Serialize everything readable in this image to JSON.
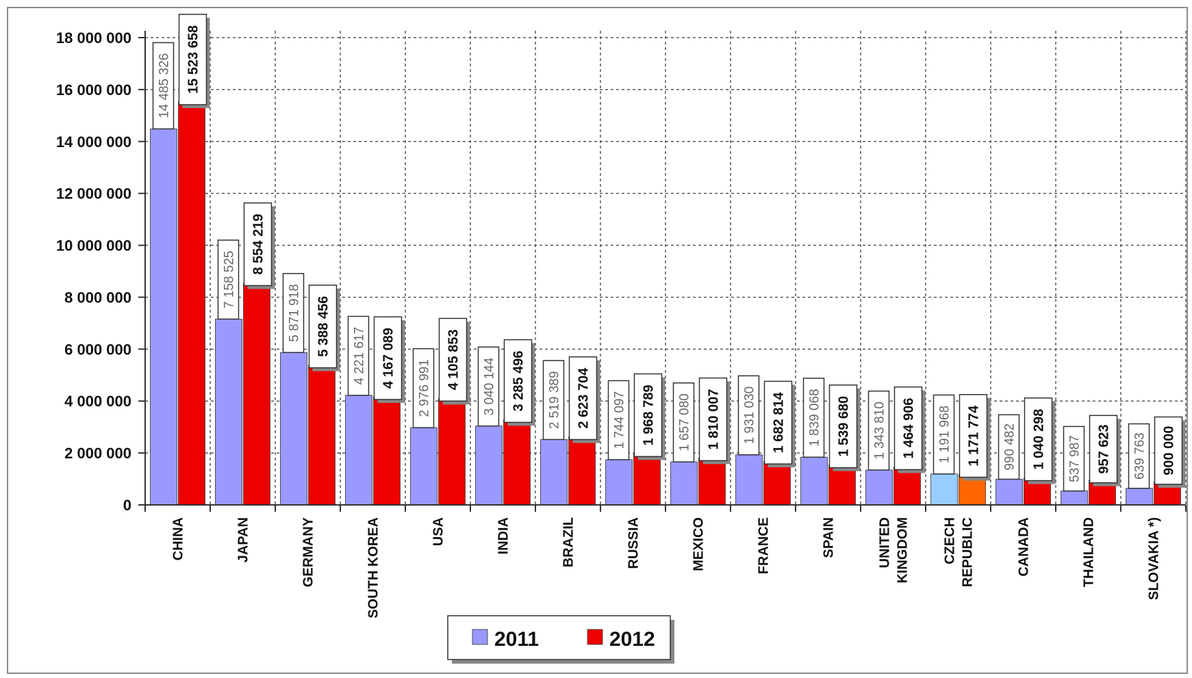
{
  "chart_data": {
    "type": "bar",
    "title": "",
    "xlabel": "",
    "ylabel": "",
    "ylim": [
      0,
      18000000
    ],
    "y_ticks": [
      "0",
      "2 000 000",
      "4 000 000",
      "6 000 000",
      "8 000 000",
      "10 000 000",
      "12 000 000",
      "14 000 000",
      "16 000 000",
      "18 000 000"
    ],
    "y_tick_values": [
      0,
      2000000,
      4000000,
      6000000,
      8000000,
      10000000,
      12000000,
      14000000,
      16000000,
      18000000
    ],
    "grid": true,
    "legend_position": "bottom-center",
    "categories": [
      [
        "CHINA"
      ],
      [
        "JAPAN"
      ],
      [
        "GERMANY"
      ],
      [
        "SOUTH KOREA"
      ],
      [
        "USA"
      ],
      [
        "INDIA"
      ],
      [
        "BRAZIL"
      ],
      [
        "RUSSIA"
      ],
      [
        "MEXICO"
      ],
      [
        "FRANCE"
      ],
      [
        "SPAIN"
      ],
      [
        "UNITED",
        "KINGDOM"
      ],
      [
        "CZECH",
        "REPUBLIC"
      ],
      [
        "CANADA"
      ],
      [
        "THAILAND"
      ],
      [
        "SLOVAKIA *)"
      ]
    ],
    "series": [
      {
        "name": "2011",
        "color": "#9999ff",
        "values": [
          14485326,
          7158525,
          5871918,
          4221617,
          2976991,
          3040144,
          2519389,
          1744097,
          1657080,
          1931030,
          1839068,
          1343810,
          1191968,
          990482,
          537987,
          639763
        ],
        "labels": [
          "14 485 326",
          "7 158 525",
          "5 871 918",
          "4 221 617",
          "2 976 991",
          "3 040 144",
          "2 519 389",
          "1 744 097",
          "1 657 080",
          "1 931 030",
          "1 839 068",
          "1 343 810",
          "1 191 968",
          "990 482",
          "537 987",
          "639 763"
        ]
      },
      {
        "name": "2012",
        "color": "#ee0000",
        "values": [
          15523658,
          8554219,
          5388456,
          4167089,
          4105853,
          3285496,
          2623704,
          1968789,
          1810007,
          1682814,
          1539680,
          1464906,
          1171774,
          1040298,
          957623,
          900000
        ],
        "labels": [
          "15 523 658",
          "8 554 219",
          "5 388 456",
          "4 167 089",
          "4 105 853",
          "3 285 496",
          "2 623 704",
          "1 968 789",
          "1 810 007",
          "1 682 814",
          "1 539 680",
          "1 464 906",
          "1 171 774",
          "1 040 298",
          "957 623",
          "900 000"
        ]
      }
    ],
    "highlight": {
      "category": "CZECH REPUBLIC",
      "color_2011": "#99ccff",
      "color_2012": "#ff6600"
    }
  }
}
